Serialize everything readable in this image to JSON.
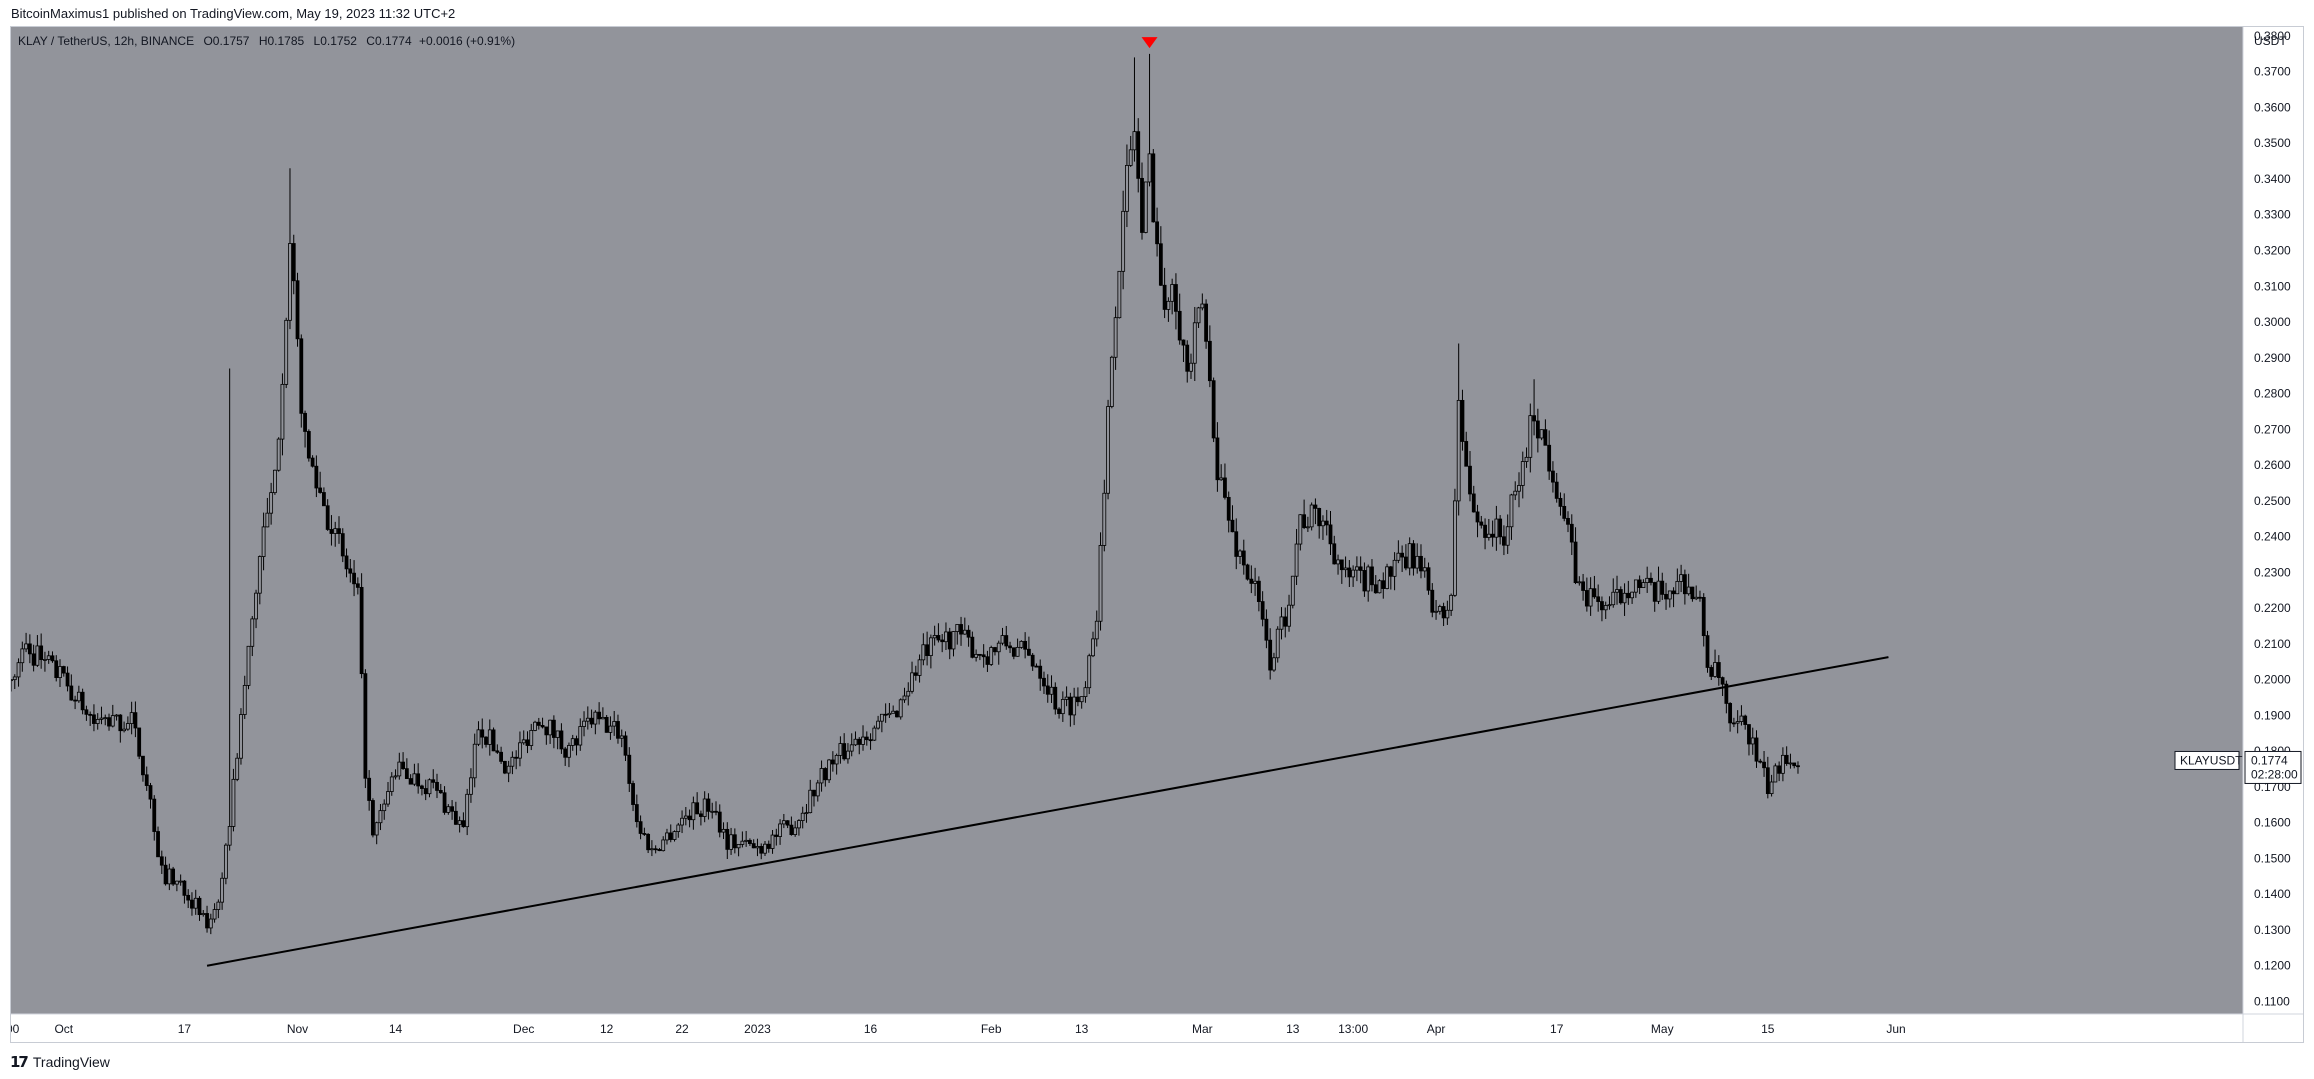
{
  "header": {
    "published": "BitcoinMaximus1 published on TradingView.com, May 19, 2023 11:32 UTC+2"
  },
  "symbol_line": {
    "name": "KLAY / TetherUS, 12h, BINANCE",
    "o_label": "O",
    "o_value": "0.1757",
    "h_label": "H",
    "h_value": "0.1785",
    "l_label": "L",
    "l_value": "0.1752",
    "c_label": "C",
    "c_value": "0.1774",
    "change": "+0.0016 (+0.91%)"
  },
  "footer": {
    "brand": "TradingView",
    "logo_icon": "tradingview-logo-icon"
  },
  "colors": {
    "plot_background": "#92949b",
    "candle": "#000000",
    "trendline": "#000000",
    "marker": "#ff0000",
    "axis_background": "#ffffff"
  },
  "chart_data": {
    "type": "candlestick",
    "symbol": "KLAY / TetherUS",
    "interval": "12h",
    "exchange": "BINANCE",
    "y_unit": "USDT",
    "ylim": [
      0.1065,
      0.3825
    ],
    "y_ticks": [
      "0.1100",
      "0.1200",
      "0.1300",
      "0.1400",
      "0.1500",
      "0.1600",
      "0.1700",
      "0.1800",
      "0.1900",
      "0.2000",
      "0.2100",
      "0.2200",
      "0.2300",
      "0.2400",
      "0.2500",
      "0.2600",
      "0.2700",
      "0.2800",
      "0.2900",
      "0.3000",
      "0.3100",
      "0.3200",
      "0.3300",
      "0.3400",
      "0.3500",
      "0.3600",
      "0.3700",
      "0.3800"
    ],
    "x_ticks": [
      {
        "label": ":00",
        "date": "2022-09-24"
      },
      {
        "label": "Oct",
        "date": "2022-10-01"
      },
      {
        "label": "17",
        "date": "2022-10-17"
      },
      {
        "label": "Nov",
        "date": "2022-11-01"
      },
      {
        "label": "14",
        "date": "2022-11-14"
      },
      {
        "label": "Dec",
        "date": "2022-12-01"
      },
      {
        "label": "12",
        "date": "2022-12-12"
      },
      {
        "label": "22",
        "date": "2022-12-22"
      },
      {
        "label": "2023",
        "date": "2023-01-01"
      },
      {
        "label": "16",
        "date": "2023-01-16"
      },
      {
        "label": "Feb",
        "date": "2023-02-01"
      },
      {
        "label": "13",
        "date": "2023-02-13"
      },
      {
        "label": "Mar",
        "date": "2023-03-01"
      },
      {
        "label": "13",
        "date": "2023-03-13"
      },
      {
        "label": "13:00",
        "date": "2023-03-21"
      },
      {
        "label": "Apr",
        "date": "2023-04-01"
      },
      {
        "label": "17",
        "date": "2023-04-17"
      },
      {
        "label": "May",
        "date": "2023-05-01"
      },
      {
        "label": "15",
        "date": "2023-05-15"
      },
      {
        "label": "Jun",
        "date": "2023-06-01"
      }
    ],
    "price_path": [
      {
        "date": "2022-09-24",
        "close": 0.2
      },
      {
        "date": "2022-09-26",
        "close": 0.209
      },
      {
        "date": "2022-09-30",
        "close": 0.202
      },
      {
        "date": "2022-10-05",
        "close": 0.188
      },
      {
        "date": "2022-10-10",
        "close": 0.188
      },
      {
        "date": "2022-10-12",
        "close": 0.172
      },
      {
        "date": "2022-10-14",
        "close": 0.146
      },
      {
        "date": "2022-10-17",
        "close": 0.142
      },
      {
        "date": "2022-10-20",
        "close": 0.131
      },
      {
        "date": "2022-10-22",
        "close": 0.142
      },
      {
        "date": "2022-10-24",
        "close": 0.18
      },
      {
        "date": "2022-10-27",
        "close": 0.235
      },
      {
        "date": "2022-10-29",
        "close": 0.255
      },
      {
        "date": "2022-10-31",
        "close": 0.32
      },
      {
        "date": "2022-11-02",
        "close": 0.265
      },
      {
        "date": "2022-11-06",
        "close": 0.24
      },
      {
        "date": "2022-11-09",
        "close": 0.222
      },
      {
        "date": "2022-11-10",
        "close": 0.175
      },
      {
        "date": "2022-11-11",
        "close": 0.155
      },
      {
        "date": "2022-11-14",
        "close": 0.175
      },
      {
        "date": "2022-11-19",
        "close": 0.17
      },
      {
        "date": "2022-11-23",
        "close": 0.158
      },
      {
        "date": "2022-11-25",
        "close": 0.188
      },
      {
        "date": "2022-11-29",
        "close": 0.175
      },
      {
        "date": "2022-12-03",
        "close": 0.19
      },
      {
        "date": "2022-12-07",
        "close": 0.18
      },
      {
        "date": "2022-12-10",
        "close": 0.189
      },
      {
        "date": "2022-12-14",
        "close": 0.185
      },
      {
        "date": "2022-12-16",
        "close": 0.16
      },
      {
        "date": "2022-12-18",
        "close": 0.152
      },
      {
        "date": "2022-12-23",
        "close": 0.163
      },
      {
        "date": "2022-12-26",
        "close": 0.165
      },
      {
        "date": "2022-12-28",
        "close": 0.155
      },
      {
        "date": "2023-01-01",
        "close": 0.153
      },
      {
        "date": "2023-01-06",
        "close": 0.16
      },
      {
        "date": "2023-01-10",
        "close": 0.175
      },
      {
        "date": "2023-01-15",
        "close": 0.185
      },
      {
        "date": "2023-01-19",
        "close": 0.19
      },
      {
        "date": "2023-01-23",
        "close": 0.207
      },
      {
        "date": "2023-01-27",
        "close": 0.213
      },
      {
        "date": "2023-01-31",
        "close": 0.207
      },
      {
        "date": "2023-02-03",
        "close": 0.21
      },
      {
        "date": "2023-02-07",
        "close": 0.205
      },
      {
        "date": "2023-02-10",
        "close": 0.192
      },
      {
        "date": "2023-02-13",
        "close": 0.195
      },
      {
        "date": "2023-02-15",
        "close": 0.22
      },
      {
        "date": "2023-02-16",
        "close": 0.25
      },
      {
        "date": "2023-02-17",
        "close": 0.295
      },
      {
        "date": "2023-02-19",
        "close": 0.34
      },
      {
        "date": "2023-02-20",
        "close": 0.355
      },
      {
        "date": "2023-02-21",
        "close": 0.325
      },
      {
        "date": "2023-02-22",
        "close": 0.345
      },
      {
        "date": "2023-02-24",
        "close": 0.3
      },
      {
        "date": "2023-02-25",
        "close": 0.315
      },
      {
        "date": "2023-02-27",
        "close": 0.285
      },
      {
        "date": "2023-03-01",
        "close": 0.305
      },
      {
        "date": "2023-03-03",
        "close": 0.26
      },
      {
        "date": "2023-03-05",
        "close": 0.24
      },
      {
        "date": "2023-03-08",
        "close": 0.225
      },
      {
        "date": "2023-03-10",
        "close": 0.205
      },
      {
        "date": "2023-03-12",
        "close": 0.218
      },
      {
        "date": "2023-03-14",
        "close": 0.245
      },
      {
        "date": "2023-03-17",
        "close": 0.245
      },
      {
        "date": "2023-03-20",
        "close": 0.228
      },
      {
        "date": "2023-03-25",
        "close": 0.228
      },
      {
        "date": "2023-03-29",
        "close": 0.235
      },
      {
        "date": "2023-04-02",
        "close": 0.215
      },
      {
        "date": "2023-04-03",
        "close": 0.225
      },
      {
        "date": "2023-04-04",
        "close": 0.275
      },
      {
        "date": "2023-04-06",
        "close": 0.245
      },
      {
        "date": "2023-04-10",
        "close": 0.24
      },
      {
        "date": "2023-04-12",
        "close": 0.255
      },
      {
        "date": "2023-04-14",
        "close": 0.275
      },
      {
        "date": "2023-04-17",
        "close": 0.255
      },
      {
        "date": "2023-04-20",
        "close": 0.225
      },
      {
        "date": "2023-04-24",
        "close": 0.22
      },
      {
        "date": "2023-04-27",
        "close": 0.228
      },
      {
        "date": "2023-04-30",
        "close": 0.223
      },
      {
        "date": "2023-05-04",
        "close": 0.228
      },
      {
        "date": "2023-05-06",
        "close": 0.22
      },
      {
        "date": "2023-05-07",
        "close": 0.205
      },
      {
        "date": "2023-05-09",
        "close": 0.198
      },
      {
        "date": "2023-05-10",
        "close": 0.185
      },
      {
        "date": "2023-05-12",
        "close": 0.188
      },
      {
        "date": "2023-05-14",
        "close": 0.175
      },
      {
        "date": "2023-05-15",
        "close": 0.17
      },
      {
        "date": "2023-05-16",
        "close": 0.173
      },
      {
        "date": "2023-05-17",
        "close": 0.18
      },
      {
        "date": "2023-05-19",
        "close": 0.1774
      }
    ],
    "spikes": [
      {
        "date": "2022-10-23",
        "high": 0.287
      },
      {
        "date": "2022-10-31",
        "high": 0.343
      },
      {
        "date": "2023-02-20",
        "high": 0.374
      },
      {
        "date": "2023-02-22",
        "high": 0.375
      },
      {
        "date": "2023-04-04",
        "high": 0.294
      },
      {
        "date": "2023-04-14",
        "high": 0.284
      }
    ],
    "trendline": [
      {
        "date": "2022-10-20",
        "price": 0.12
      },
      {
        "date": "2023-05-31",
        "price": 0.2063
      }
    ],
    "marker": {
      "type": "down-triangle",
      "date": "2023-02-22",
      "price": 0.378
    },
    "last_price": {
      "symbol": "KLAYUSDT",
      "price": "0.1774",
      "countdown": "02:28:00"
    }
  }
}
